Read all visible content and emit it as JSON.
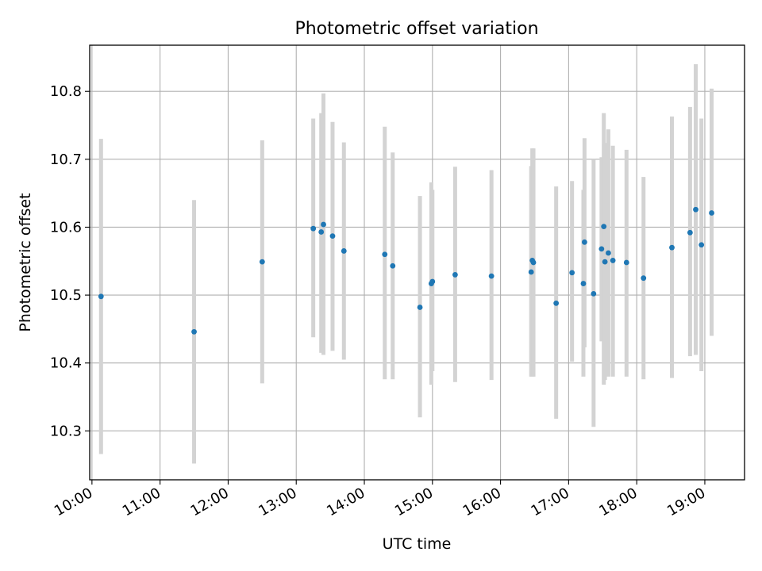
{
  "chart_data": {
    "type": "scatter",
    "title": "Photometric offset variation",
    "xlabel": "UTC time",
    "ylabel": "Photometric offset",
    "x_tick_labels": [
      "10:00",
      "11:00",
      "12:00",
      "13:00",
      "14:00",
      "15:00",
      "16:00",
      "17:00",
      "18:00",
      "19:00"
    ],
    "y_tick_labels": [
      "10.3",
      "10.4",
      "10.5",
      "10.6",
      "10.7",
      "10.8"
    ],
    "xlim": [
      "09:58",
      "19:35"
    ],
    "ylim": [
      10.228,
      10.868
    ],
    "grid": true,
    "colors": {
      "marker": "#1f77b4",
      "errorbar": "#d3d3d3",
      "grid": "#b0b0b0"
    },
    "series": [
      {
        "x": [
          "10:08",
          "11:30",
          "12:30",
          "13:15",
          "13:22",
          "13:24",
          "13:32",
          "13:42",
          "14:18",
          "14:25",
          "14:49",
          "14:59",
          "15:00",
          "15:20",
          "15:52",
          "16:27",
          "16:28",
          "16:29",
          "16:49",
          "17:03",
          "17:13",
          "17:14",
          "17:22",
          "17:29",
          "17:31",
          "17:32",
          "17:35",
          "17:39",
          "17:51",
          "18:06",
          "18:31",
          "18:47",
          "18:52",
          "18:57",
          "19:06"
        ],
        "y": [
          10.498,
          10.446,
          10.549,
          10.598,
          10.593,
          10.604,
          10.587,
          10.565,
          10.56,
          10.543,
          10.482,
          10.517,
          10.52,
          10.53,
          10.528,
          10.534,
          10.551,
          10.548,
          10.488,
          10.533,
          10.517,
          10.578,
          10.502,
          10.568,
          10.601,
          10.549,
          10.562,
          10.551,
          10.548,
          10.525,
          10.57,
          10.592,
          10.626,
          10.574,
          10.621
        ],
        "yerr_low": [
          10.266,
          10.252,
          10.37,
          10.438,
          10.415,
          10.412,
          10.418,
          10.405,
          10.376,
          10.376,
          10.32,
          10.368,
          10.388,
          10.372,
          10.375,
          10.38,
          10.38,
          10.38,
          10.318,
          10.402,
          10.38,
          10.423,
          10.306,
          10.432,
          10.368,
          10.375,
          10.38,
          10.38,
          10.38,
          10.376,
          10.378,
          10.41,
          10.412,
          10.388,
          10.44
        ],
        "yerr_high": [
          10.73,
          10.64,
          10.728,
          10.76,
          10.768,
          10.797,
          10.755,
          10.725,
          10.748,
          10.71,
          10.646,
          10.666,
          10.655,
          10.689,
          10.684,
          10.69,
          10.716,
          10.716,
          10.66,
          10.668,
          10.655,
          10.731,
          10.7,
          10.703,
          10.768,
          10.724,
          10.744,
          10.72,
          10.714,
          10.674,
          10.763,
          10.777,
          10.84,
          10.76,
          10.804
        ]
      }
    ]
  }
}
